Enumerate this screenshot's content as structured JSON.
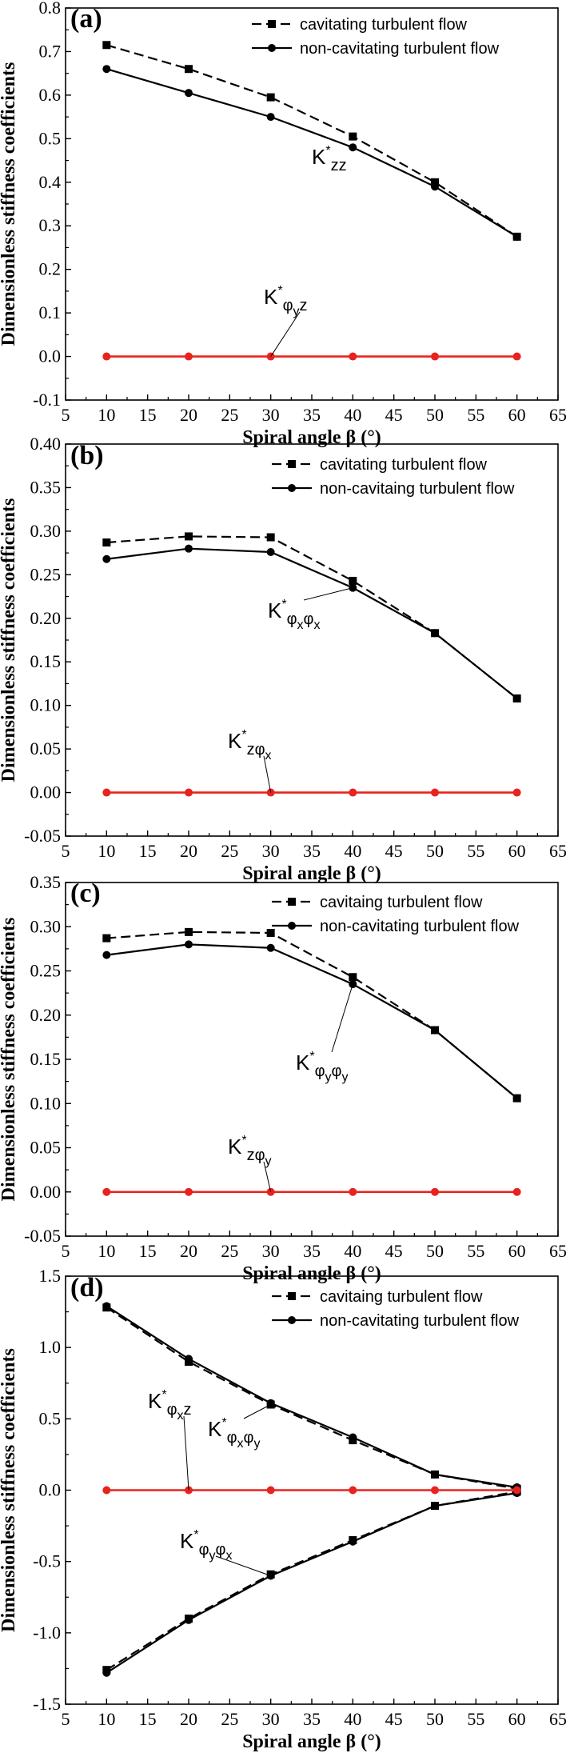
{
  "chart_data": [
    {
      "type": "line",
      "panel": "(a)",
      "xlabel": "Spiral angle β (°)",
      "ylabel": "Dimensionless stiffness coefficients",
      "xlim": [
        5,
        65
      ],
      "ylim": [
        -0.1,
        0.8
      ],
      "xticks": [
        "5",
        "10",
        "15",
        "20",
        "25",
        "30",
        "35",
        "40",
        "45",
        "50",
        "55",
        "60",
        "65"
      ],
      "yticks": [
        "-0.1",
        "0.0",
        "0.1",
        "0.2",
        "0.3",
        "0.4",
        "0.5",
        "0.6",
        "0.7",
        "0.8"
      ],
      "x": [
        10,
        20,
        30,
        40,
        50,
        60
      ],
      "series": [
        {
          "name": "cavitating turbulent flow",
          "style": "dashed",
          "marker": "square",
          "color": "#000000",
          "values": [
            0.715,
            0.66,
            0.595,
            0.505,
            0.4,
            0.275
          ]
        },
        {
          "name": "non-cavitating turbulent flow",
          "style": "solid",
          "marker": "circle",
          "color": "#000000",
          "values": [
            0.66,
            0.605,
            0.55,
            0.48,
            0.39,
            0.275
          ]
        },
        {
          "style": "solid",
          "marker": "circle",
          "color": "#e8231d",
          "values": [
            0,
            0,
            0,
            0,
            0,
            0
          ]
        }
      ],
      "annotations": [
        {
          "base": "K",
          "sup": "*",
          "sub": "zz",
          "x": 40,
          "y": 0.48
        },
        {
          "base": "K",
          "sup": "*",
          "sub": "φ",
          "subsub": "y",
          "tail": "z",
          "x": 30,
          "y": 0.0
        }
      ],
      "legend": "top-right"
    },
    {
      "type": "line",
      "panel": "(b)",
      "xlabel": "Spiral angle β (°)",
      "ylabel": "Dimensionless stiffness coefficients",
      "xlim": [
        5,
        65
      ],
      "ylim": [
        -0.05,
        0.4
      ],
      "xticks": [
        "5",
        "10",
        "15",
        "20",
        "25",
        "30",
        "35",
        "40",
        "45",
        "50",
        "55",
        "60",
        "65"
      ],
      "yticks": [
        "-0.05",
        "0.00",
        "0.05",
        "0.10",
        "0.15",
        "0.20",
        "0.25",
        "0.30",
        "0.35",
        "0.40"
      ],
      "x": [
        10,
        20,
        30,
        40,
        50,
        60
      ],
      "series": [
        {
          "name": "cavitating turbulent flow",
          "style": "dashed",
          "marker": "square",
          "color": "#000000",
          "values": [
            0.287,
            0.294,
            0.293,
            0.243,
            0.183,
            0.108
          ]
        },
        {
          "name": "non-cavitaing turbulent flow",
          "style": "solid",
          "marker": "circle",
          "color": "#000000",
          "values": [
            0.268,
            0.28,
            0.276,
            0.235,
            0.183,
            0.108
          ]
        },
        {
          "style": "solid",
          "marker": "circle",
          "color": "#e8231d",
          "values": [
            0,
            0,
            0,
            0,
            0,
            0
          ]
        }
      ],
      "annotations": [
        {
          "base": "K",
          "sup": "*",
          "sub": "φ",
          "subsub": "x",
          "sub2": "φ",
          "subsub2": "x",
          "x": 40,
          "y": 0.235
        },
        {
          "base": "K",
          "sup": "*",
          "sub": "zφ",
          "subsub": "x",
          "x": 30,
          "y": 0.0
        }
      ],
      "legend": "top-right"
    },
    {
      "type": "line",
      "panel": "(c)",
      "xlabel": "Spiral angle β (°)",
      "ylabel": "Dimensionless stiffness coefficients",
      "xlim": [
        5,
        65
      ],
      "ylim": [
        -0.05,
        0.35
      ],
      "xticks": [
        "5",
        "10",
        "15",
        "20",
        "25",
        "30",
        "35",
        "40",
        "45",
        "50",
        "55",
        "60",
        "65"
      ],
      "yticks": [
        "-0.05",
        "0.00",
        "0.05",
        "0.10",
        "0.15",
        "0.20",
        "0.25",
        "0.30",
        "0.35"
      ],
      "x": [
        10,
        20,
        30,
        40,
        50,
        60
      ],
      "series": [
        {
          "name": "cavitaing turbulent flow",
          "style": "dashed",
          "marker": "square",
          "color": "#000000",
          "values": [
            0.287,
            0.294,
            0.293,
            0.243,
            0.183,
            0.106
          ]
        },
        {
          "name": "non-cavitating turbulent flow",
          "style": "solid",
          "marker": "circle",
          "color": "#000000",
          "values": [
            0.268,
            0.28,
            0.276,
            0.235,
            0.183,
            0.106
          ]
        },
        {
          "style": "solid",
          "marker": "circle",
          "color": "#e8231d",
          "values": [
            0,
            0,
            0,
            0,
            0,
            0
          ]
        }
      ],
      "annotations": [
        {
          "base": "K",
          "sup": "*",
          "sub": "φ",
          "subsub": "y",
          "sub2": "φ",
          "subsub2": "y",
          "x": 40,
          "y": 0.235
        },
        {
          "base": "K",
          "sup": "*",
          "sub": "zφ",
          "subsub": "y",
          "x": 30,
          "y": 0.0
        }
      ],
      "legend": "top-right"
    },
    {
      "type": "line",
      "panel": "(d)",
      "xlabel": "Spiral angle β (°)",
      "ylabel": "Dimensionless stiffness coefficients",
      "xlim": [
        5,
        65
      ],
      "ylim": [
        -1.5,
        1.5
      ],
      "xticks": [
        "5",
        "10",
        "15",
        "20",
        "25",
        "30",
        "35",
        "40",
        "45",
        "50",
        "55",
        "60",
        "65"
      ],
      "yticks": [
        "-1.5",
        "-1.0",
        "-0.5",
        "0.0",
        "0.5",
        "1.0",
        "1.5"
      ],
      "x": [
        10,
        20,
        30,
        40,
        50,
        60
      ],
      "series": [
        {
          "name": "cavitaing turbulent flow",
          "style": "dashed",
          "marker": "square",
          "color": "#000000",
          "values": [
            1.28,
            0.9,
            0.6,
            0.35,
            0.11,
            0.01
          ]
        },
        {
          "name": "non-cavitating turbulent flow",
          "style": "solid",
          "marker": "circle",
          "color": "#000000",
          "values": [
            1.29,
            0.92,
            0.61,
            0.37,
            0.11,
            0.02
          ]
        },
        {
          "style": "dashed",
          "marker": "square",
          "color": "#000000",
          "values": [
            -1.26,
            -0.9,
            -0.59,
            -0.35,
            -0.11,
            -0.01
          ]
        },
        {
          "style": "solid",
          "marker": "circle",
          "color": "#000000",
          "values": [
            -1.28,
            -0.91,
            -0.6,
            -0.36,
            -0.11,
            -0.02
          ]
        },
        {
          "style": "solid",
          "marker": "circle",
          "color": "#e8231d",
          "values": [
            0,
            0,
            0,
            0,
            0,
            0
          ]
        }
      ],
      "annotations": [
        {
          "base": "K",
          "sup": "*",
          "sub": "φ",
          "subsub": "x",
          "sub2": "φ",
          "subsub2": "y",
          "x": 30,
          "y": 0.6
        },
        {
          "base": "K",
          "sup": "*",
          "sub": "φ",
          "subsub": "x",
          "tail": "z",
          "x": 20,
          "y": 0.0
        },
        {
          "base": "K",
          "sup": "*",
          "sub": "φ",
          "subsub": "y",
          "sub2": "φ",
          "subsub2": "x",
          "x": 30,
          "y": -0.6
        }
      ],
      "legend": "top-right"
    }
  ]
}
